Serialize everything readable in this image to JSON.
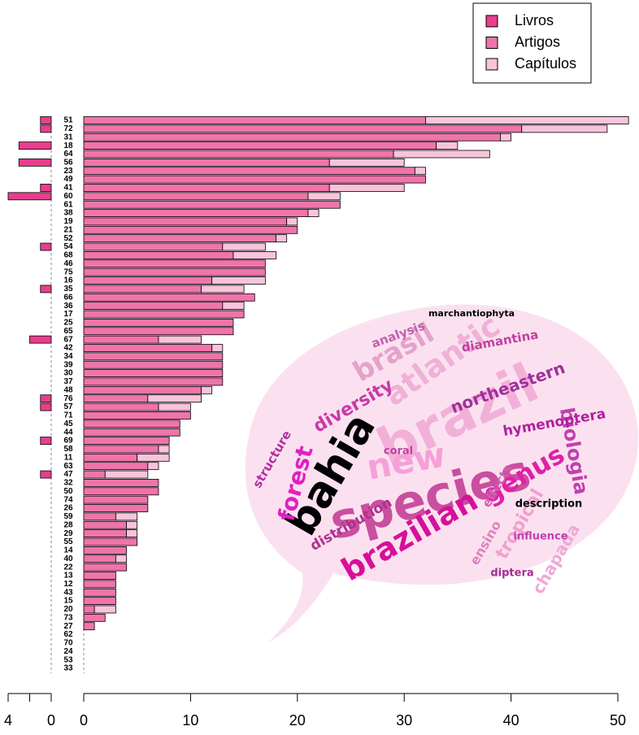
{
  "chart_data": {
    "type": "bar",
    "orientation": "horizontal",
    "categories": [
      "51",
      "72",
      "31",
      "18",
      "64",
      "56",
      "23",
      "49",
      "41",
      "60",
      "61",
      "38",
      "19",
      "21",
      "52",
      "54",
      "68",
      "46",
      "75",
      "16",
      "35",
      "66",
      "36",
      "17",
      "25",
      "65",
      "67",
      "42",
      "34",
      "39",
      "30",
      "37",
      "48",
      "76",
      "57",
      "71",
      "45",
      "44",
      "69",
      "58",
      "11",
      "63",
      "47",
      "32",
      "50",
      "74",
      "26",
      "59",
      "28",
      "29",
      "55",
      "14",
      "40",
      "22",
      "13",
      "12",
      "43",
      "15",
      "20",
      "73",
      "27",
      "62",
      "70",
      "24",
      "53",
      "33"
    ],
    "series": [
      {
        "name": "Livros",
        "color": "#e83e8c",
        "axis": "x2",
        "values": [
          1,
          1,
          0,
          3,
          0,
          3,
          0,
          0,
          1,
          4,
          0,
          0,
          0,
          0,
          0,
          1,
          0,
          0,
          0,
          0,
          1,
          0,
          0,
          0,
          0,
          0,
          2,
          0,
          0,
          0,
          0,
          0,
          0,
          1,
          1,
          0,
          0,
          0,
          1,
          0,
          0,
          0,
          1,
          0,
          0,
          0,
          0,
          0,
          0,
          0,
          0,
          0,
          0,
          0,
          0,
          0,
          0,
          0,
          0,
          0,
          0,
          0,
          0,
          0,
          0,
          0
        ]
      },
      {
        "name": "Artigos",
        "color": "#f074ab",
        "values": [
          32,
          41,
          39,
          33,
          29,
          23,
          31,
          32,
          23,
          21,
          24,
          21,
          19,
          20,
          18,
          13,
          14,
          17,
          17,
          12,
          11,
          16,
          13,
          15,
          14,
          14,
          7,
          12,
          13,
          13,
          13,
          13,
          11,
          6,
          7,
          10,
          9,
          9,
          8,
          7,
          5,
          6,
          2,
          7,
          7,
          6,
          6,
          3,
          4,
          4,
          5,
          4,
          3,
          4,
          3,
          3,
          3,
          3,
          1,
          2,
          1,
          0,
          0,
          0,
          0,
          0
        ]
      },
      {
        "name": "Capítulos",
        "color": "#f8c4db",
        "values": [
          19,
          8,
          1,
          2,
          9,
          7,
          1,
          0,
          7,
          3,
          0,
          1,
          1,
          0,
          1,
          4,
          4,
          0,
          0,
          5,
          4,
          0,
          2,
          0,
          0,
          0,
          4,
          1,
          0,
          0,
          0,
          0,
          1,
          5,
          3,
          0,
          0,
          0,
          0,
          1,
          3,
          1,
          4,
          0,
          0,
          0,
          0,
          2,
          1,
          1,
          0,
          0,
          1,
          0,
          0,
          0,
          0,
          0,
          2,
          0,
          0,
          0,
          0,
          0,
          0,
          0
        ]
      }
    ],
    "xlim": [
      0,
      50
    ],
    "xticks": [
      0,
      10,
      20,
      30,
      40,
      50
    ],
    "x2lim": [
      0,
      4
    ],
    "x2ticks": [
      0,
      {
        "value": 2,
        "label": null
      },
      4
    ],
    "legend": "top-right"
  },
  "word_cloud": {
    "words": [
      {
        "text": "species",
        "color": "#c94fa0"
      },
      {
        "text": "brazil",
        "color": "#f2b0d8"
      },
      {
        "text": "bahia",
        "color": "#000000"
      },
      {
        "text": "brazilian",
        "color": "#d6109a"
      },
      {
        "text": "new",
        "color": "#f5a0d8"
      },
      {
        "text": "atlantic",
        "color": "#f0b0d8"
      },
      {
        "text": "brasil",
        "color": "#e3a3cb"
      },
      {
        "text": "genus",
        "color": "#e020a8"
      },
      {
        "text": "forest",
        "color": "#e020c0"
      },
      {
        "text": "diversity",
        "color": "#c83aa8"
      },
      {
        "text": "northeastern",
        "color": "#a0309c"
      },
      {
        "text": "biologia",
        "color": "#c040b0"
      },
      {
        "text": "hymenoptera",
        "color": "#b020a0"
      },
      {
        "text": "tropical",
        "color": "#f0a0d0"
      },
      {
        "text": "chapada",
        "color": "#f0a8d8"
      },
      {
        "text": "distribution",
        "color": "#b03090"
      },
      {
        "text": "diamantina",
        "color": "#c040a0"
      },
      {
        "text": "analysis",
        "color": "#c060b0"
      },
      {
        "text": "structure",
        "color": "#b030a0"
      },
      {
        "text": "description",
        "color": "#000000"
      },
      {
        "text": "marchantiophyta",
        "color": "#000000"
      },
      {
        "text": "ensino",
        "color": "#e080c0"
      },
      {
        "text": "coral",
        "color": "#c040a0"
      },
      {
        "text": "diptera",
        "color": "#a03090"
      },
      {
        "text": "influence",
        "color": "#c040b0"
      },
      {
        "text": "effects",
        "color": "#d060b0"
      }
    ]
  }
}
